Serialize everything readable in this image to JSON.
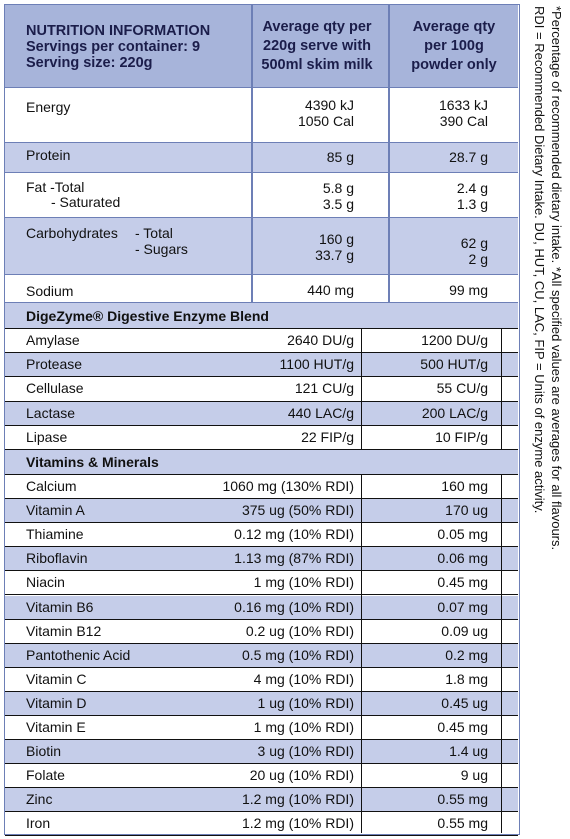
{
  "header": {
    "title": "NUTRITION INFORMATION",
    "servings": "Servings per container: 9",
    "serving_size": "Serving size: 220g",
    "col1": [
      "Average qty per",
      "220g serve with",
      "500ml skim milk"
    ],
    "col2": [
      "Average qty",
      "per 100g",
      "powder only"
    ]
  },
  "top_rows": [
    {
      "label": "Energy",
      "col1": [
        "4390 kJ",
        "1050 Cal"
      ],
      "col2": [
        "1633 kJ",
        "390 Cal"
      ]
    },
    {
      "label": "Protein",
      "col1": [
        "85 g"
      ],
      "col2": [
        "28.7 g"
      ]
    },
    {
      "label": "Fat  -Total",
      "sub": "- Saturated",
      "col1": [
        "5.8 g",
        "3.5 g"
      ],
      "col2": [
        "2.4 g",
        "1.3 g"
      ]
    },
    {
      "label": "Carbohydrates",
      "sublabels": [
        "- Total",
        "- Sugars"
      ],
      "col1": [
        "160 g",
        "33.7 g"
      ],
      "col2": [
        "62 g",
        "2 g"
      ]
    },
    {
      "label": "Sodium",
      "col1": [
        "440 mg"
      ],
      "col2": [
        "99 mg"
      ]
    }
  ],
  "enzyme_section": {
    "title": "DigeZyme® Digestive Enzyme Blend",
    "rows": [
      {
        "label": "Amylase",
        "col1": "2640 DU/g",
        "col2": "1200 DU/g"
      },
      {
        "label": "Protease",
        "col1": "1100 HUT/g",
        "col2": "500 HUT/g"
      },
      {
        "label": "Cellulase",
        "col1": "121 CU/g",
        "col2": "55 CU/g"
      },
      {
        "label": "Lactase",
        "col1": "440 LAC/g",
        "col2": "200 LAC/g"
      },
      {
        "label": "Lipase",
        "col1": "22 FIP/g",
        "col2": "10 FIP/g"
      }
    ]
  },
  "vitamin_section": {
    "title": "Vitamins & Minerals",
    "rows": [
      {
        "label": "Calcium",
        "col1": "1060 mg (130% RDI)",
        "col2": "160 mg"
      },
      {
        "label": "Vitamin A",
        "col1": "375 ug (50% RDI)",
        "col2": "170 ug"
      },
      {
        "label": "Thiamine",
        "col1": "0.12 mg (10% RDI)",
        "col2": "0.05 mg"
      },
      {
        "label": "Riboflavin",
        "col1": "1.13 mg (87% RDI)",
        "col2": "0.06 mg"
      },
      {
        "label": "Niacin",
        "col1": "1 mg (10% RDI)",
        "col2": "0.45 mg"
      },
      {
        "label": "Vitamin B6",
        "col1": "0.16 mg (10% RDI)",
        "col2": "0.07 mg"
      },
      {
        "label": "Vitamin B12",
        "col1": "0.2 ug (10% RDI)",
        "col2": "0.09 ug"
      },
      {
        "label": "Pantothenic Acid",
        "col1": "0.5 mg (10% RDI)",
        "col2": "0.2 mg"
      },
      {
        "label": "Vitamin C",
        "col1": "4 mg (10% RDI)",
        "col2": "1.8 mg"
      },
      {
        "label": "Vitamin D",
        "col1": "1 ug (10% RDI)",
        "col2": "0.45 ug"
      },
      {
        "label": "Vitamin E",
        "col1": "1 mg (10% RDI)",
        "col2": "0.45 mg"
      },
      {
        "label": "Biotin",
        "col1": "3 ug (10% RDI)",
        "col2": "1.4 ug"
      },
      {
        "label": "Folate",
        "col1": "20 ug (10% RDI)",
        "col2": "9 ug"
      },
      {
        "label": "Zinc",
        "col1": "1.2 mg (10% RDI)",
        "col2": "0.55 mg"
      },
      {
        "label": "Iron",
        "col1": "1.2 mg (10% RDI)",
        "col2": "0.55 mg"
      }
    ]
  },
  "footnote": {
    "line1": "*Percentage of recommended dietary intake. *All specified values are averages for all flavours.",
    "line2": "RDI = Recommended Dietary Intake. DU, HUT, CU, LAC, FIP = Units of enzyme activity."
  },
  "colors": {
    "header_bg": "#a7b4da",
    "shade": "#c5cde9",
    "rule": "#6d7fb6"
  }
}
